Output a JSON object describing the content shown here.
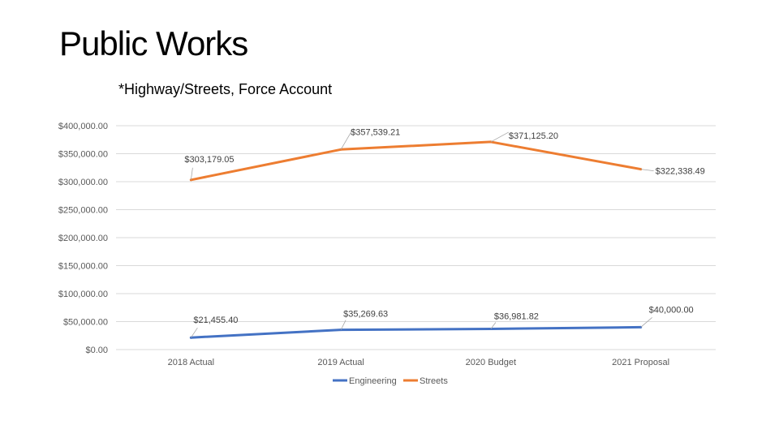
{
  "slide": {
    "title": "Public Works"
  },
  "chart_data": {
    "type": "line",
    "title": "*Highway/Streets, Force Account",
    "categories": [
      "2018 Actual",
      "2019 Actual",
      "2020 Budget",
      "2021 Proposal"
    ],
    "ylim": [
      0,
      400000
    ],
    "yticks": [
      "$400,000.00",
      "$350,000.00",
      "$300,000.00",
      "$250,000.00",
      "$200,000.00",
      "$150,000.00",
      "$100,000.00",
      "$50,000.00",
      "$0.00"
    ],
    "ytick_values": [
      400000,
      350000,
      300000,
      250000,
      200000,
      150000,
      100000,
      50000,
      0
    ],
    "grid": true,
    "legend_position": "bottom",
    "series": [
      {
        "name": "Engineering",
        "color": "#4472c4",
        "values": [
          21455.4,
          35269.63,
          36981.82,
          40000.0
        ],
        "labels": [
          "$21,455.40",
          "$35,269.63",
          "$36,981.82",
          "$40,000.00"
        ]
      },
      {
        "name": "Streets",
        "color": "#ed7d31",
        "values": [
          303179.05,
          357539.21,
          371125.2,
          322338.49
        ],
        "labels": [
          "$303,179.05",
          "$357,539.21",
          "$371,125.20",
          "$322,338.49"
        ]
      }
    ]
  }
}
